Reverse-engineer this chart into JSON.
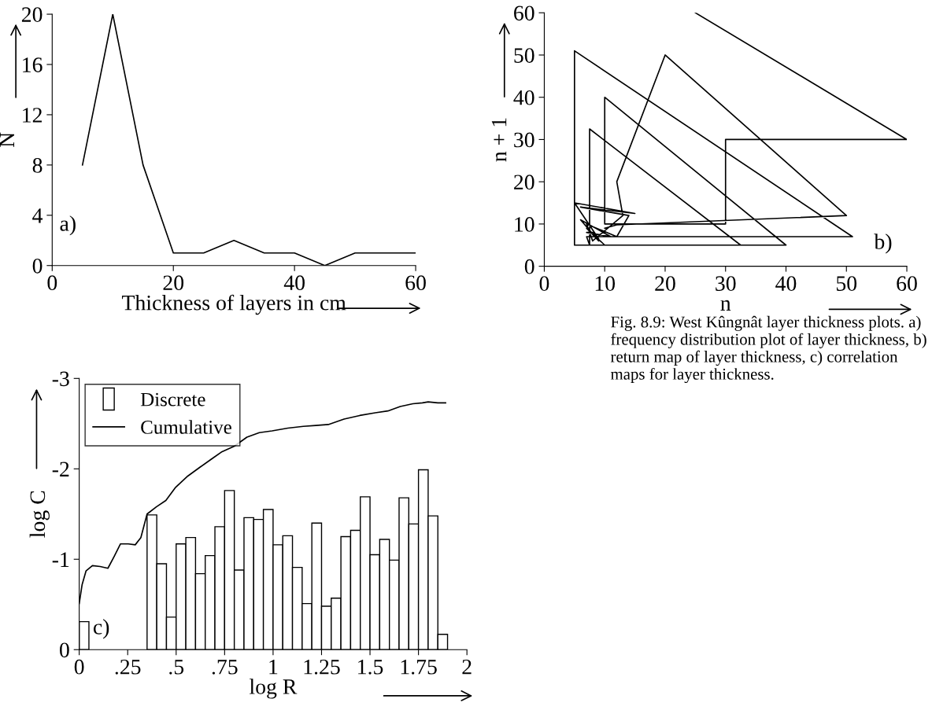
{
  "chart_data": [
    {
      "type": "line",
      "xlabel": "Thickness of layers in cm",
      "ylabel": "N",
      "annotations": [
        "a)"
      ],
      "x": [
        5,
        10,
        15,
        20,
        25,
        30,
        35,
        40,
        45,
        50,
        55,
        60
      ],
      "series": [
        {
          "color": "#000000",
          "values": [
            8,
            20,
            8,
            1,
            1,
            2,
            1,
            1,
            0,
            1,
            1,
            1
          ]
        }
      ],
      "xlim": [
        0,
        60
      ],
      "xticks": [
        0,
        20,
        40,
        60
      ],
      "ylim": [
        0,
        20
      ],
      "yticks": [
        0,
        4,
        8,
        12,
        16,
        20
      ],
      "grid": false,
      "legend": false
    },
    {
      "type": "line",
      "xlabel": "n",
      "ylabel": "n + 1",
      "annotations": [
        "b)"
      ],
      "series": [
        {
          "color": "#000000",
          "x": [
            25,
            60,
            30,
            30,
            10,
            10,
            40,
            5,
            5,
            51,
            7,
            7.5,
            7.5,
            32.5,
            10,
            7,
            9,
            6,
            11,
            7,
            8,
            9,
            5,
            15,
            6,
            14,
            12,
            7,
            8,
            13,
            12,
            20,
            50,
            12,
            10
          ],
          "values": [
            60,
            30,
            30,
            10,
            10,
            40,
            5,
            5,
            51,
            7,
            7,
            5,
            32.5,
            5,
            5,
            9,
            6,
            11,
            7,
            8,
            8,
            6.5,
            15,
            12.5,
            14,
            12,
            7,
            10,
            6,
            12,
            20,
            50,
            12,
            9.8,
            9
          ]
        }
      ],
      "xlim": [
        0,
        60
      ],
      "xticks": [
        0,
        10,
        20,
        30,
        40,
        50,
        60
      ],
      "ylim": [
        0,
        60
      ],
      "yticks": [
        0,
        10,
        20,
        30,
        40,
        50,
        60
      ],
      "grid": false,
      "legend": false
    },
    {
      "type": "histogram",
      "xlabel": "log R",
      "ylabel": "log C",
      "annotations": [
        "c)",
        "Fig. 8.9: West Kûngnât layer thickness plots. a) frequency distribution plot of layer thickness, b) return map of layer thickness, c) correlation maps for layer thickness."
      ],
      "bins": [
        0,
        0.05,
        0.1,
        0.15,
        0.2,
        0.25,
        0.3,
        0.35,
        0.4,
        0.45,
        0.5,
        0.55,
        0.6,
        0.65,
        0.7,
        0.75,
        0.8,
        0.85,
        0.9,
        0.95,
        1.0,
        1.05,
        1.1,
        1.15,
        1.2,
        1.25,
        1.3,
        1.35,
        1.4,
        1.45,
        1.5,
        1.55,
        1.6,
        1.65,
        1.7,
        1.75,
        1.8,
        1.85,
        1.9
      ],
      "series": [
        {
          "name": "Discrete",
          "type": "histogram",
          "color": "#ffffff",
          "values": [
            -0.31,
            0,
            0,
            0,
            0,
            0,
            0,
            -1.49,
            -0.95,
            -0.36,
            -1.17,
            -1.24,
            -0.84,
            -1.04,
            -1.36,
            -1.76,
            -0.88,
            -1.46,
            -1.44,
            -1.55,
            -1.16,
            -1.26,
            -0.91,
            -0.51,
            -1.4,
            -0.48,
            -0.57,
            -1.25,
            -1.32,
            -1.69,
            -1.05,
            -1.22,
            -0.99,
            -1.68,
            -1.39,
            -1.99,
            -1.48,
            -0.17
          ]
        },
        {
          "name": "Cumulative",
          "type": "line",
          "color": "#000000",
          "x": [
            0,
            0.015,
            0.035,
            0.068,
            0.108,
            0.148,
            0.18,
            0.213,
            0.253,
            0.289,
            0.318,
            0.35,
            0.398,
            0.447,
            0.495,
            0.56,
            0.624,
            0.69,
            0.737,
            0.8,
            0.865,
            0.929,
            0.995,
            1.076,
            1.156,
            1.22,
            1.285,
            1.366,
            1.447,
            1.527,
            1.592,
            1.656,
            1.721,
            1.77,
            1.8,
            1.85,
            1.89
          ],
          "values": [
            -0.51,
            -0.72,
            -0.87,
            -0.93,
            -0.92,
            -0.9,
            -1.03,
            -1.17,
            -1.17,
            -1.16,
            -1.24,
            -1.5,
            -1.58,
            -1.65,
            -1.79,
            -1.92,
            -2.02,
            -2.12,
            -2.19,
            -2.25,
            -2.35,
            -2.4,
            -2.42,
            -2.45,
            -2.47,
            -2.48,
            -2.49,
            -2.55,
            -2.59,
            -2.62,
            -2.64,
            -2.69,
            -2.72,
            -2.73,
            -2.74,
            -2.73,
            -2.73
          ]
        }
      ],
      "xlim": [
        0,
        2
      ],
      "xticks": [
        0,
        {
          "value": 0.25,
          "label": ".25"
        },
        {
          "value": 0.5,
          "label": ".5"
        },
        {
          "value": 0.75,
          "label": ".75"
        },
        1,
        1.25,
        1.5,
        1.75,
        2
      ],
      "ylim": [
        0,
        -3
      ],
      "yticks": [
        0,
        -1,
        -2,
        -3
      ],
      "grid": false,
      "legend": "top left"
    }
  ]
}
